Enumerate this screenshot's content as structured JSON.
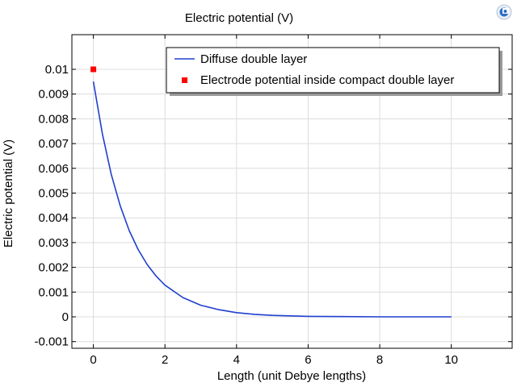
{
  "chart_data": {
    "type": "line",
    "title": "Electric potential (V)",
    "xlabel": "Length (unit Debye lengths)",
    "ylabel": "Electric potential (V)",
    "xlim": [
      -0.6,
      11.7
    ],
    "ylim": [
      -0.00127,
      0.0114
    ],
    "x_ticks": [
      0,
      2,
      4,
      6,
      8,
      10
    ],
    "x_tick_labels": [
      "0",
      "2",
      "4",
      "6",
      "8",
      "10"
    ],
    "y_ticks": [
      -0.001,
      0,
      0.001,
      0.002,
      0.003,
      0.004,
      0.005,
      0.006,
      0.007,
      0.008,
      0.009,
      0.01
    ],
    "y_tick_labels": [
      "-0.001",
      "0",
      "0.001",
      "0.002",
      "0.003",
      "0.004",
      "0.005",
      "0.006",
      "0.007",
      "0.008",
      "0.009",
      "0.01"
    ],
    "grid": true,
    "legend_position": "top-right",
    "series": [
      {
        "name": "Diffuse double layer",
        "kind": "line",
        "color": "#1f3fcf",
        "x": [
          0,
          0.25,
          0.5,
          0.75,
          1,
          1.25,
          1.5,
          1.75,
          2,
          2.5,
          3,
          3.5,
          4,
          4.5,
          5,
          6,
          7,
          8,
          9,
          10
        ],
        "y": [
          0.0095,
          0.0074,
          0.00576,
          0.00449,
          0.00349,
          0.00272,
          0.00212,
          0.00165,
          0.00128,
          0.00078,
          0.00047,
          0.00029,
          0.00017,
          0.0001,
          6e-05,
          2e-05,
          1e-05,
          0,
          0,
          0
        ]
      },
      {
        "name": "Electrode potential inside compact double layer",
        "kind": "marker",
        "color": "#ff0000",
        "x": [
          0
        ],
        "y": [
          0.01
        ]
      }
    ]
  },
  "corner_icon": {
    "name": "comsol-logo-icon",
    "color": "#2a6fc9"
  }
}
